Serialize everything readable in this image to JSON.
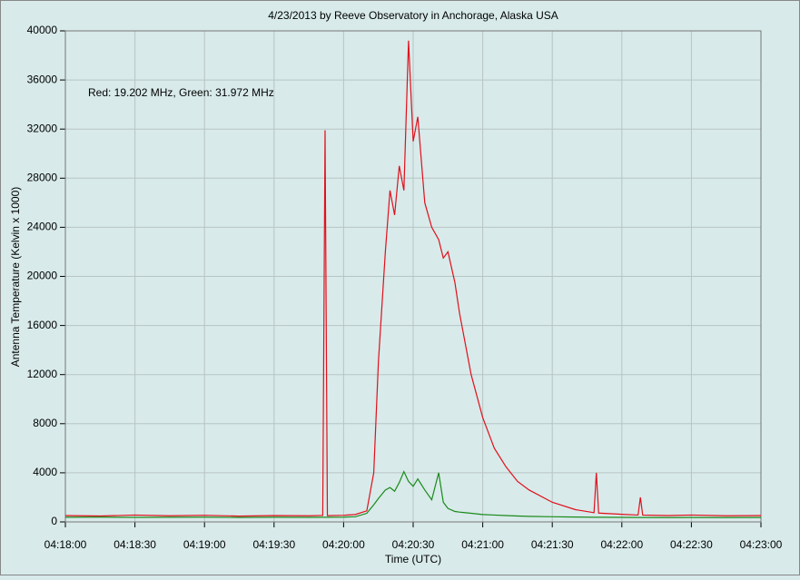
{
  "chart_data": {
    "type": "line",
    "title": "4/23/2013  by  Reeve Observatory  in  Anchorage, Alaska  USA",
    "annotation": "Red: 19.202 MHz, Green: 31.972 MHz",
    "x_label": "Time (UTC)",
    "y_label": "Antenna Temperature (Kelvin x 1000)",
    "x": [
      "04:18:00",
      "04:18:15",
      "04:18:30",
      "04:18:45",
      "04:19:00",
      "04:19:15",
      "04:19:30",
      "04:19:45",
      "04:19:51",
      "04:19:52",
      "04:19:53",
      "04:20:00",
      "04:20:05",
      "04:20:10",
      "04:20:13",
      "04:20:15",
      "04:20:18",
      "04:20:20",
      "04:20:22",
      "04:20:24",
      "04:20:26",
      "04:20:28",
      "04:20:30",
      "04:20:32",
      "04:20:35",
      "04:20:38",
      "04:20:41",
      "04:20:43",
      "04:20:45",
      "04:20:48",
      "04:20:50",
      "04:20:55",
      "04:21:00",
      "04:21:05",
      "04:21:10",
      "04:21:15",
      "04:21:20",
      "04:21:30",
      "04:21:40",
      "04:21:48",
      "04:21:49",
      "04:21:50",
      "04:22:00",
      "04:22:07",
      "04:22:08",
      "04:22:09",
      "04:22:20",
      "04:22:30",
      "04:22:45",
      "04:23:00"
    ],
    "series": [
      {
        "color": "#e0101c",
        "values": [
          520,
          480,
          560,
          500,
          540,
          470,
          520,
          500,
          530,
          31900,
          510,
          540,
          600,
          900,
          4000,
          13000,
          22000,
          27000,
          25000,
          29000,
          27000,
          39200,
          31000,
          33000,
          26000,
          24000,
          23000,
          21500,
          22000,
          19500,
          17000,
          12000,
          8500,
          6000,
          4500,
          3300,
          2600,
          1600,
          1000,
          750,
          4000,
          720,
          620,
          560,
          2000,
          560,
          520,
          560,
          500,
          520
        ]
      },
      {
        "color": "#1a8a1a",
        "values": [
          380,
          390,
          370,
          380,
          390,
          360,
          380,
          370,
          380,
          380,
          380,
          390,
          420,
          700,
          1400,
          1900,
          2600,
          2800,
          2500,
          3200,
          4100,
          3300,
          2900,
          3500,
          2600,
          1800,
          4000,
          1600,
          1100,
          850,
          800,
          700,
          600,
          560,
          520,
          480,
          450,
          420,
          400,
          380,
          380,
          380,
          370,
          360,
          360,
          360,
          350,
          360,
          350,
          360
        ]
      }
    ],
    "xlim": [
      "04:18:00",
      "04:23:00"
    ],
    "xticks": [
      "04:18:00",
      "04:18:30",
      "04:19:00",
      "04:19:30",
      "04:20:00",
      "04:20:30",
      "04:21:00",
      "04:21:30",
      "04:22:00",
      "04:22:30",
      "04:23:00"
    ],
    "ylim": [
      0,
      40000
    ],
    "yticks": [
      0,
      4000,
      8000,
      12000,
      16000,
      20000,
      24000,
      28000,
      32000,
      36000,
      40000
    ],
    "grid": true
  }
}
